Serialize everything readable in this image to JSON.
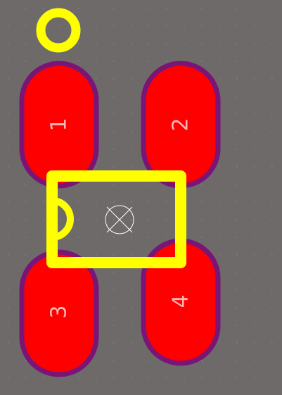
{
  "board": {
    "background_color": "#6e6a6a",
    "grid_dot_color": "#858080"
  },
  "pads": [
    {
      "label": "1",
      "shape": "oval"
    },
    {
      "label": "2",
      "shape": "oval"
    },
    {
      "label": "3",
      "shape": "oval"
    },
    {
      "label": "4",
      "shape": "oval"
    }
  ],
  "colors": {
    "pad_fill": "#ff0000",
    "pad_outline": "#7a1578",
    "silkscreen": "#ffff00",
    "pad_label": "#ffb6b6",
    "origin_marker": "#ffffff"
  },
  "markers": {
    "pin1_indicator": "circle",
    "body_notch": "half-circle",
    "origin": "circle-cross"
  }
}
